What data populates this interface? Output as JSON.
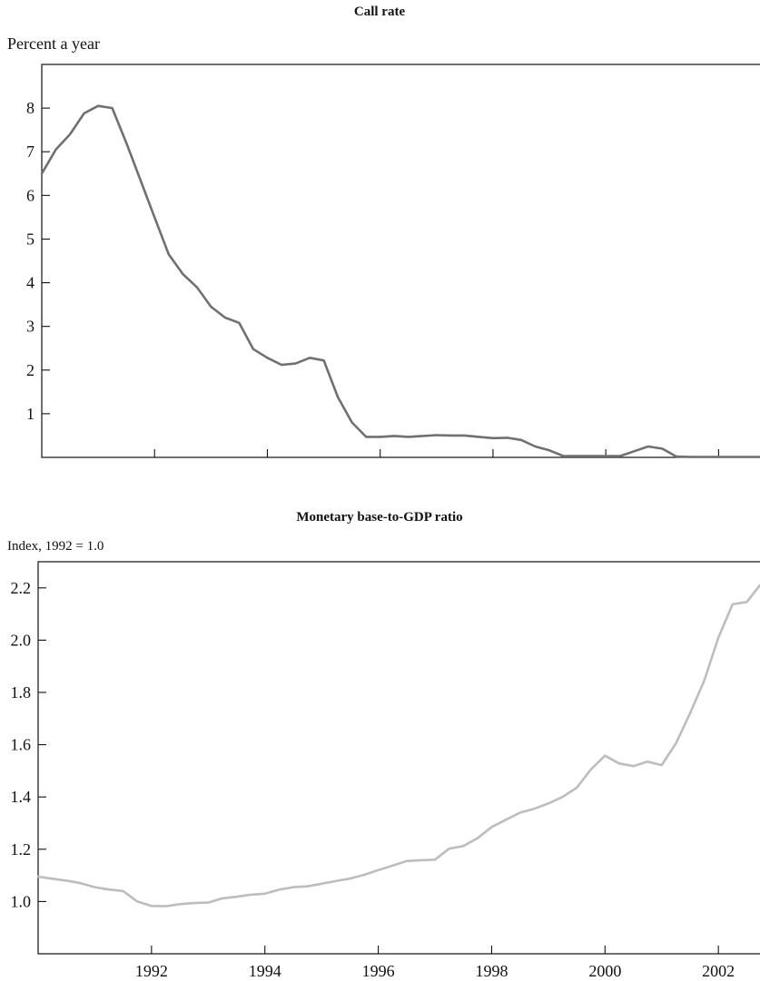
{
  "chart_data": [
    {
      "type": "line",
      "title": "Call rate",
      "ylabel": "Percent a year",
      "xlabel": "",
      "xlim": [
        1990.0,
        2002.75
      ],
      "ylim": [
        0,
        9
      ],
      "yticks": [
        1,
        2,
        3,
        4,
        5,
        6,
        7,
        8
      ],
      "xticks": [
        1992,
        1994,
        1996,
        1998,
        2000,
        2002
      ],
      "show_x_tick_labels": false,
      "grid": false,
      "color": "#707070",
      "x": [
        1990.0,
        1990.25,
        1990.5,
        1990.75,
        1991.0,
        1991.25,
        1991.5,
        1991.75,
        1992.0,
        1992.25,
        1992.5,
        1992.75,
        1993.0,
        1993.25,
        1993.5,
        1993.75,
        1994.0,
        1994.25,
        1994.5,
        1994.75,
        1995.0,
        1995.25,
        1995.5,
        1995.75,
        1996.0,
        1996.25,
        1996.5,
        1996.75,
        1997.0,
        1997.25,
        1997.5,
        1997.75,
        1998.0,
        1998.25,
        1998.5,
        1998.75,
        1999.0,
        1999.25,
        1999.5,
        1999.75,
        2000.0,
        2000.25,
        2000.5,
        2000.75,
        2001.0,
        2001.25,
        2001.5,
        2001.75,
        2002.0,
        2002.25,
        2002.5,
        2002.75
      ],
      "values": [
        6.5,
        7.05,
        7.4,
        7.88,
        8.05,
        8.0,
        7.2,
        6.35,
        5.5,
        4.65,
        4.2,
        3.9,
        3.45,
        3.2,
        3.08,
        2.48,
        2.28,
        2.12,
        2.15,
        2.28,
        2.22,
        1.38,
        0.8,
        0.47,
        0.47,
        0.49,
        0.47,
        0.49,
        0.51,
        0.5,
        0.5,
        0.47,
        0.44,
        0.45,
        0.4,
        0.25,
        0.16,
        0.03,
        0.03,
        0.03,
        0.03,
        0.03,
        0.14,
        0.25,
        0.2,
        0.02,
        0.01,
        0.01,
        0.01,
        0.01,
        0.01,
        0.01
      ]
    },
    {
      "type": "line",
      "title": "Monetary base-to-GDP ratio",
      "ylabel": "Index, 1992 = 1.0",
      "xlabel": "",
      "xlim": [
        1990.0,
        2002.75
      ],
      "ylim": [
        0.8,
        2.3
      ],
      "yticks": [
        "1.0",
        "1.2",
        "1.4",
        "1.6",
        "1.8",
        "2.0",
        "2.2"
      ],
      "xticks": [
        "1992",
        "1994",
        "1996",
        "1998",
        "2000",
        "2002"
      ],
      "show_x_tick_labels": true,
      "grid": false,
      "color": "#bdbdbd",
      "x": [
        1990.0,
        1990.25,
        1990.5,
        1990.75,
        1991.0,
        1991.25,
        1991.5,
        1991.75,
        1992.0,
        1992.25,
        1992.5,
        1992.75,
        1993.0,
        1993.25,
        1993.5,
        1993.75,
        1994.0,
        1994.25,
        1994.5,
        1994.75,
        1995.0,
        1995.25,
        1995.5,
        1995.75,
        1996.0,
        1996.25,
        1996.5,
        1996.75,
        1997.0,
        1997.25,
        1997.5,
        1997.75,
        1998.0,
        1998.25,
        1998.5,
        1998.75,
        1999.0,
        1999.25,
        1999.5,
        1999.75,
        2000.0,
        2000.25,
        2000.5,
        2000.75,
        2001.0,
        2001.25,
        2001.5,
        2001.75,
        2002.0,
        2002.25,
        2002.5,
        2002.75
      ],
      "values": [
        1.095,
        1.087,
        1.08,
        1.07,
        1.055,
        1.046,
        1.04,
        1.0,
        0.983,
        0.982,
        0.99,
        0.994,
        0.996,
        1.012,
        1.018,
        1.026,
        1.03,
        1.045,
        1.055,
        1.058,
        1.068,
        1.078,
        1.088,
        1.102,
        1.12,
        1.137,
        1.155,
        1.158,
        1.16,
        1.202,
        1.212,
        1.242,
        1.285,
        1.313,
        1.34,
        1.355,
        1.375,
        1.4,
        1.435,
        1.505,
        1.558,
        1.528,
        1.518,
        1.535,
        1.522,
        1.605,
        1.72,
        1.845,
        2.01,
        2.137,
        2.146,
        2.215
      ]
    }
  ]
}
